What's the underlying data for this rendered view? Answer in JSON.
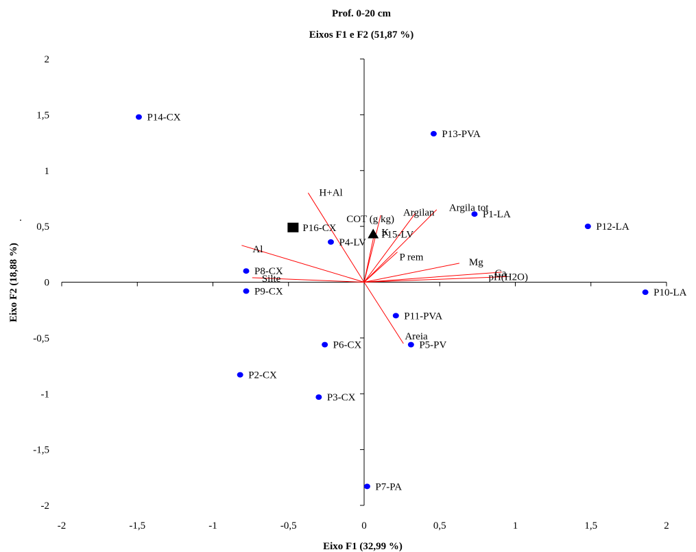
{
  "chart_data": {
    "type": "scatter",
    "title": "Prof. 0-20 cm",
    "subtitle": "Eixos F1 e F2  (51,87 %)",
    "xlabel": "Eixo F1 (32,99 %)",
    "ylabel": "Eixo F2 (18,88 %)",
    "ylabel_marker": ".",
    "xlim": [
      -2,
      2
    ],
    "ylim": [
      -2,
      2
    ],
    "x_ticks": [
      {
        "value": -2,
        "label": "-2"
      },
      {
        "value": -1.5,
        "label": "-1,5"
      },
      {
        "value": -1,
        "label": "-1"
      },
      {
        "value": -0.5,
        "label": "-0,5"
      },
      {
        "value": 0,
        "label": "0"
      },
      {
        "value": 0.5,
        "label": "0,5"
      },
      {
        "value": 1,
        "label": "1"
      },
      {
        "value": 1.5,
        "label": "1,5"
      },
      {
        "value": 2,
        "label": "2"
      }
    ],
    "y_ticks": [
      {
        "value": -2,
        "label": "-2"
      },
      {
        "value": -1.5,
        "label": "-1,5"
      },
      {
        "value": -1,
        "label": "-1"
      },
      {
        "value": -0.5,
        "label": "-0,5"
      },
      {
        "value": 0,
        "label": "0"
      },
      {
        "value": 0.5,
        "label": "0,5"
      },
      {
        "value": 1,
        "label": "1"
      },
      {
        "value": 1.5,
        "label": "1,5"
      },
      {
        "value": 2,
        "label": "2"
      }
    ],
    "grid": false,
    "point_color": "#0000ff",
    "vector_color": "#ff0000",
    "observations": [
      {
        "label": "P1-LA",
        "x": 0.73,
        "y": 0.61,
        "marker": "circle"
      },
      {
        "label": "P2-CX",
        "x": -0.82,
        "y": -0.83,
        "marker": "circle"
      },
      {
        "label": "P3-CX",
        "x": -0.3,
        "y": -1.03,
        "marker": "circle"
      },
      {
        "label": "P4-LV",
        "x": -0.22,
        "y": 0.36,
        "marker": "circle"
      },
      {
        "label": "P5-PV",
        "x": 0.31,
        "y": -0.56,
        "marker": "circle"
      },
      {
        "label": "P6-CX",
        "x": -0.26,
        "y": -0.56,
        "marker": "circle"
      },
      {
        "label": "P7-PA",
        "x": 0.02,
        "y": -1.83,
        "marker": "circle"
      },
      {
        "label": "P8-CX",
        "x": -0.78,
        "y": 0.1,
        "marker": "circle"
      },
      {
        "label": "P9-CX",
        "x": -0.78,
        "y": -0.08,
        "marker": "circle"
      },
      {
        "label": "P10-LA",
        "x": 1.86,
        "y": -0.09,
        "marker": "circle"
      },
      {
        "label": "P11-PVA",
        "x": 0.21,
        "y": -0.3,
        "marker": "circle"
      },
      {
        "label": "P12-LA",
        "x": 1.48,
        "y": 0.5,
        "marker": "circle"
      },
      {
        "label": "P13-PVA",
        "x": 0.46,
        "y": 1.33,
        "marker": "circle"
      },
      {
        "label": "P14-CX",
        "x": -1.49,
        "y": 1.48,
        "marker": "circle"
      },
      {
        "label": "P15-LV",
        "x": 0.06,
        "y": 0.43,
        "marker": "triangle"
      },
      {
        "label": "P16-CX",
        "x": -0.47,
        "y": 0.49,
        "marker": "square"
      }
    ],
    "variables": [
      {
        "label": "H+Al",
        "x": -0.37,
        "y": 0.8
      },
      {
        "label": "Al",
        "x": -0.81,
        "y": 0.33
      },
      {
        "label": "Silte",
        "x": -0.74,
        "y": 0.04
      },
      {
        "label": "COT (g kg)",
        "x": 0.11,
        "y": 0.6
      },
      {
        "label": "K",
        "x": 0.07,
        "y": 0.45
      },
      {
        "label": "Argila tot",
        "x": 0.48,
        "y": 0.65
      },
      {
        "label": "Argilan",
        "x": 0.34,
        "y": 0.62
      },
      {
        "label": "P rem",
        "x": 0.22,
        "y": 0.27
      },
      {
        "label": "Mg",
        "x": 0.63,
        "y": 0.17
      },
      {
        "label": "Ca",
        "x": 0.91,
        "y": 0.09
      },
      {
        "label": "pH(H2O)",
        "x": 0.95,
        "y": 0.05
      },
      {
        "label": "Areia",
        "x": 0.26,
        "y": -0.55
      }
    ]
  }
}
